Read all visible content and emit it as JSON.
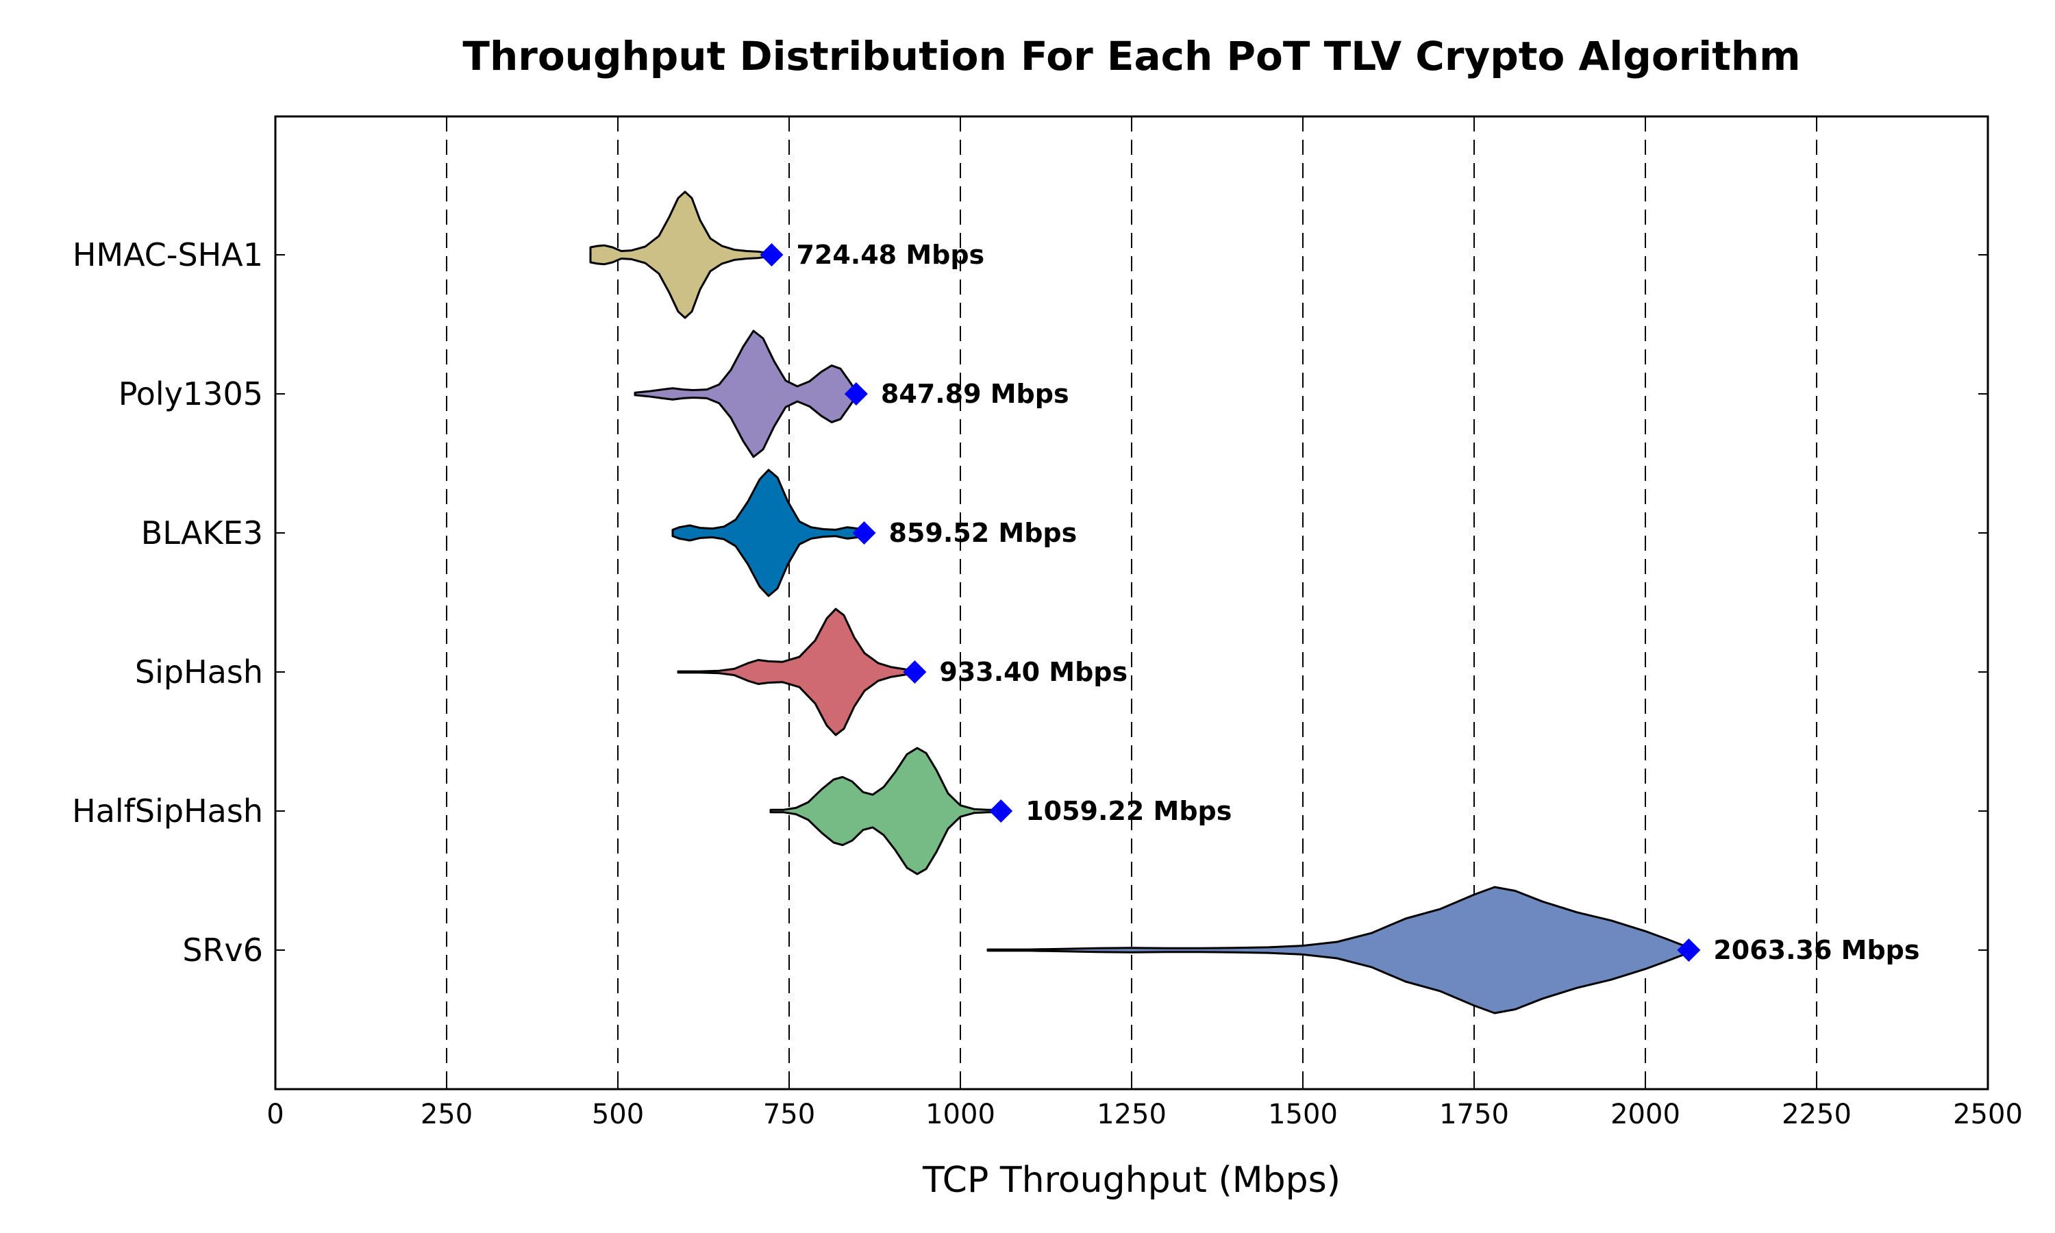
{
  "chart_data": {
    "type": "violin",
    "title": "Throughput Distribution For Each PoT TLV Crypto Algorithm",
    "xlabel": "TCP Throughput (Mbps)",
    "ylabel": "",
    "xlim": [
      0,
      2500
    ],
    "xticks": [
      0,
      250,
      500,
      750,
      1000,
      1250,
      1500,
      1750,
      2000,
      2250,
      2500
    ],
    "grid": "vertical-dashed",
    "marker_color": "#0000ff",
    "series": [
      {
        "name": "HMAC-SHA1",
        "color": "#ccc087",
        "range": [
          460,
          724.48
        ],
        "max_label": "724.48 Mbps",
        "max": 724.48,
        "density": [
          [
            460,
            0.12
          ],
          [
            470,
            0.14
          ],
          [
            480,
            0.15
          ],
          [
            492,
            0.12
          ],
          [
            505,
            0.06
          ],
          [
            520,
            0.07
          ],
          [
            540,
            0.13
          ],
          [
            560,
            0.3
          ],
          [
            575,
            0.6
          ],
          [
            588,
            0.9
          ],
          [
            598,
            1.0
          ],
          [
            608,
            0.9
          ],
          [
            620,
            0.55
          ],
          [
            635,
            0.26
          ],
          [
            652,
            0.14
          ],
          [
            670,
            0.08
          ],
          [
            688,
            0.06
          ],
          [
            705,
            0.05
          ],
          [
            724.48,
            0.02
          ]
        ]
      },
      {
        "name": "Poly1305",
        "color": "#9587c0",
        "range": [
          525,
          847.89
        ],
        "max_label": "847.89 Mbps",
        "max": 847.89,
        "density": [
          [
            525,
            0.02
          ],
          [
            545,
            0.04
          ],
          [
            565,
            0.07
          ],
          [
            580,
            0.09
          ],
          [
            595,
            0.07
          ],
          [
            610,
            0.06
          ],
          [
            630,
            0.07
          ],
          [
            648,
            0.15
          ],
          [
            665,
            0.38
          ],
          [
            683,
            0.75
          ],
          [
            698,
            1.0
          ],
          [
            712,
            0.88
          ],
          [
            728,
            0.52
          ],
          [
            745,
            0.21
          ],
          [
            762,
            0.12
          ],
          [
            780,
            0.2
          ],
          [
            797,
            0.35
          ],
          [
            812,
            0.45
          ],
          [
            825,
            0.4
          ],
          [
            838,
            0.2
          ],
          [
            847.89,
            0.04
          ]
        ]
      },
      {
        "name": "BLAKE3",
        "color": "#0072b2",
        "range": [
          580,
          859.52
        ],
        "max_label": "859.52 Mbps",
        "max": 859.52,
        "density": [
          [
            580,
            0.05
          ],
          [
            590,
            0.09
          ],
          [
            605,
            0.12
          ],
          [
            620,
            0.08
          ],
          [
            638,
            0.07
          ],
          [
            655,
            0.1
          ],
          [
            672,
            0.21
          ],
          [
            690,
            0.5
          ],
          [
            707,
            0.85
          ],
          [
            720,
            1.0
          ],
          [
            733,
            0.88
          ],
          [
            748,
            0.5
          ],
          [
            765,
            0.18
          ],
          [
            782,
            0.09
          ],
          [
            800,
            0.06
          ],
          [
            818,
            0.05
          ],
          [
            835,
            0.09
          ],
          [
            850,
            0.07
          ],
          [
            859.52,
            0.03
          ]
        ]
      },
      {
        "name": "SipHash",
        "color": "#cf6a72",
        "range": [
          588,
          933.4
        ],
        "max_label": "933.40 Mbps",
        "max": 933.4,
        "density": [
          [
            588,
            0.01
          ],
          [
            620,
            0.01
          ],
          [
            648,
            0.02
          ],
          [
            670,
            0.05
          ],
          [
            690,
            0.14
          ],
          [
            705,
            0.19
          ],
          [
            720,
            0.17
          ],
          [
            740,
            0.16
          ],
          [
            765,
            0.24
          ],
          [
            788,
            0.5
          ],
          [
            805,
            0.85
          ],
          [
            818,
            1.0
          ],
          [
            830,
            0.9
          ],
          [
            845,
            0.55
          ],
          [
            860,
            0.3
          ],
          [
            880,
            0.14
          ],
          [
            898,
            0.08
          ],
          [
            915,
            0.05
          ],
          [
            933.4,
            0.02
          ]
        ]
      },
      {
        "name": "HalfSipHash",
        "color": "#76bb85",
        "range": [
          723,
          1059.22
        ],
        "max_label": "1059.22 Mbps",
        "max": 1059.22,
        "density": [
          [
            723,
            0.02
          ],
          [
            742,
            0.02
          ],
          [
            760,
            0.05
          ],
          [
            778,
            0.14
          ],
          [
            798,
            0.35
          ],
          [
            815,
            0.5
          ],
          [
            828,
            0.54
          ],
          [
            842,
            0.47
          ],
          [
            858,
            0.3
          ],
          [
            872,
            0.26
          ],
          [
            888,
            0.38
          ],
          [
            905,
            0.62
          ],
          [
            922,
            0.9
          ],
          [
            937,
            1.0
          ],
          [
            950,
            0.92
          ],
          [
            965,
            0.65
          ],
          [
            982,
            0.28
          ],
          [
            1000,
            0.09
          ],
          [
            1020,
            0.03
          ],
          [
            1040,
            0.02
          ],
          [
            1059.22,
            0.02
          ]
        ]
      },
      {
        "name": "SRv6",
        "color": "#6d89c0",
        "range": [
          1040,
          2063.36
        ],
        "max_label": "2063.36 Mbps",
        "max": 2063.36,
        "density": [
          [
            1040,
            0.01
          ],
          [
            1100,
            0.01
          ],
          [
            1150,
            0.02
          ],
          [
            1200,
            0.03
          ],
          [
            1250,
            0.035
          ],
          [
            1300,
            0.03
          ],
          [
            1350,
            0.03
          ],
          [
            1400,
            0.035
          ],
          [
            1450,
            0.045
          ],
          [
            1500,
            0.07
          ],
          [
            1550,
            0.13
          ],
          [
            1600,
            0.27
          ],
          [
            1650,
            0.5
          ],
          [
            1700,
            0.65
          ],
          [
            1750,
            0.88
          ],
          [
            1780,
            1.0
          ],
          [
            1810,
            0.94
          ],
          [
            1850,
            0.77
          ],
          [
            1900,
            0.6
          ],
          [
            1950,
            0.47
          ],
          [
            2000,
            0.3
          ],
          [
            2030,
            0.18
          ],
          [
            2063.36,
            0.04
          ]
        ]
      }
    ]
  }
}
